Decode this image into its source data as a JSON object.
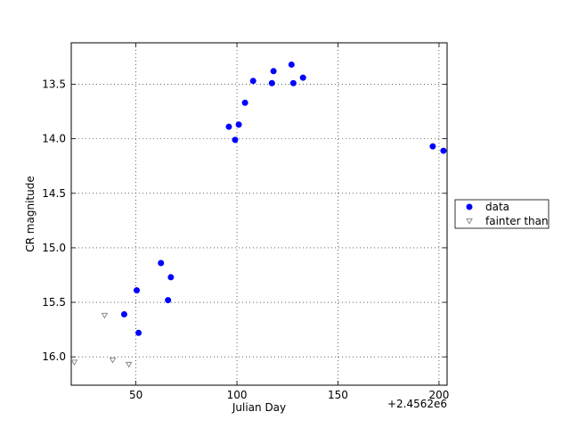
{
  "chart_data": {
    "type": "scatter",
    "x_label": "Julian Day",
    "y_label": "CR magnitude",
    "x_offset_label": "+2.4562e6",
    "xlim": [
      18,
      204
    ],
    "ylim": [
      16.26,
      13.12
    ],
    "y_inverted": true,
    "xticks": [
      50,
      100,
      150,
      200
    ],
    "yticks": [
      13.5,
      {
        "value": 14.0,
        "label": "14.0"
      },
      14.5,
      {
        "value": 15.0,
        "label": "15.0"
      },
      15.5,
      {
        "value": 16.0,
        "label": "16.0"
      }
    ],
    "grid": true,
    "legend": "right",
    "series": [
      {
        "name": "data",
        "color": "#0000ff",
        "marker": "circle",
        "x": [
          96.0,
          99.1,
          100.9,
          104.0,
          108.0,
          117.3,
          118.1,
          127.0,
          127.9,
          132.7,
          196.9,
          202.2,
          44.2,
          50.4,
          51.3,
          62.4,
          67.3,
          65.9
        ],
        "values": [
          13.89,
          14.01,
          13.87,
          13.67,
          13.47,
          13.49,
          13.38,
          13.32,
          13.49,
          13.44,
          14.07,
          14.11,
          15.61,
          15.39,
          15.78,
          15.14,
          15.27,
          15.48
        ]
      },
      {
        "name": "fainter than",
        "color": "#808080",
        "marker": "triangle-down-open",
        "x": [
          19.5,
          34.5,
          38.5,
          46.5
        ],
        "values": [
          16.05,
          15.62,
          16.03,
          16.07
        ]
      }
    ]
  }
}
